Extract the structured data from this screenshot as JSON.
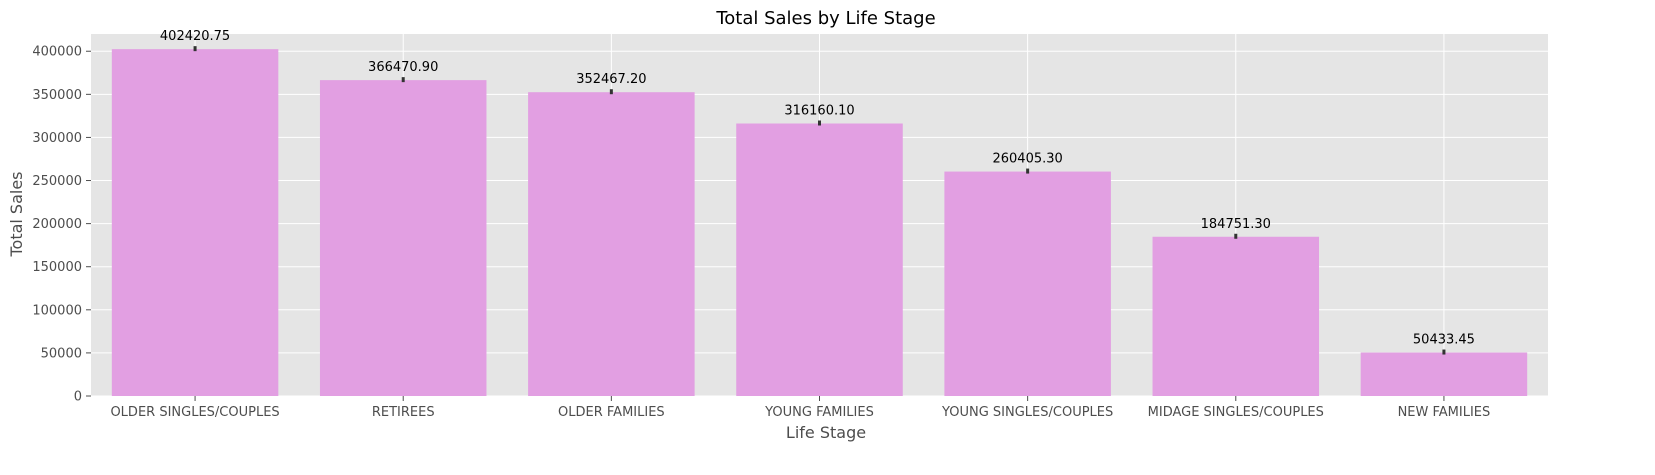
{
  "chart_data": {
    "type": "bar",
    "title": "Total Sales by Life Stage",
    "xlabel": "Life Stage",
    "ylabel": "Total Sales",
    "categories": [
      "OLDER SINGLES/COUPLES",
      "RETIREES",
      "OLDER FAMILIES",
      "YOUNG FAMILIES",
      "YOUNG SINGLES/COUPLES",
      "MIDAGE SINGLES/COUPLES",
      "NEW FAMILIES"
    ],
    "values": [
      402420.75,
      366470.9,
      352467.2,
      316160.1,
      260405.3,
      184751.3,
      50433.45
    ],
    "value_labels": [
      "402420.75",
      "366470.90",
      "352467.20",
      "316160.10",
      "260405.30",
      "184751.30",
      "50433.45"
    ],
    "ylim": [
      0,
      420000
    ],
    "yticks": [
      0,
      50000,
      100000,
      150000,
      200000,
      250000,
      300000,
      350000,
      400000
    ],
    "ytick_labels": [
      "0",
      "50000",
      "100000",
      "150000",
      "200000",
      "250000",
      "300000",
      "350000",
      "400000"
    ],
    "grid": true,
    "colors": {
      "bar": "#e29fe2",
      "background": "#e5e5e5",
      "grid": "#ffffff"
    }
  }
}
